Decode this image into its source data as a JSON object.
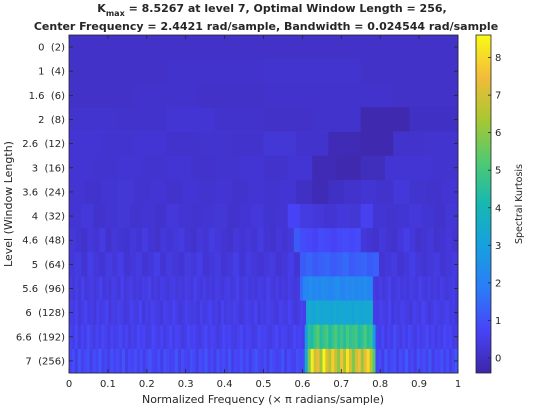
{
  "chart_data": {
    "type": "heatmap",
    "title_line1_prefix": "K",
    "title_line1_sub": "max",
    "title_line1_rest": " = 8.5267 at level 7, Optimal Window Length = 256,",
    "title_line2": "Center Frequency = 2.4421 rad/sample, Bandwidth = 0.024544 rad/sample",
    "xlabel": "Normalized Frequency (× π radians/sample)",
    "ylabel": "Level (Window Length)",
    "colorbar_label": "Spectral Kurtosis",
    "xlim": [
      0,
      1
    ],
    "x_ticks": [
      "0",
      "0.1",
      "0.2",
      "0.3",
      "0.4",
      "0.5",
      "0.6",
      "0.7",
      "0.8",
      "0.9",
      "1"
    ],
    "y_labels": [
      "0  (2)",
      "1  (4)",
      "1.6  (6)",
      "2  (8)",
      "2.6  (12)",
      "3  (16)",
      "3.6  (24)",
      "4  (32)",
      "4.6  (48)",
      "5  (64)",
      "5.6  (96)",
      "6  (128)",
      "6.6  (192)",
      "7  (256)"
    ],
    "colorbar_ticks": [
      "0",
      "1",
      "2",
      "3",
      "4",
      "5",
      "6",
      "7",
      "8"
    ],
    "clim": [
      -0.4,
      8.6
    ],
    "colormap": [
      "#3e26a8",
      "#4743f8",
      "#2b7cf8",
      "#16a0e0",
      "#16b8b1",
      "#4fca71",
      "#a9c731",
      "#f3bb3a",
      "#f9fb15"
    ],
    "levels": [
      {
        "values": [
          0.05,
          0.05
        ]
      },
      {
        "values": [
          0.05,
          0.1,
          0.15,
          0.05
        ]
      },
      {
        "values": [
          0.05,
          0.1,
          0.05,
          0.1,
          0.1,
          0.05
        ]
      },
      {
        "values": [
          0.15,
          0.1,
          0.2,
          0.1,
          0.05,
          0.1,
          -0.3,
          0.0
        ]
      },
      {
        "values": [
          0.2,
          0.15,
          0.2,
          0.1,
          0.15,
          0.1,
          0.25,
          0.1,
          -0.2,
          -0.3,
          0.1,
          0.15
        ]
      },
      {
        "values": [
          0.2,
          0.15,
          0.2,
          0.15,
          0.2,
          0.1,
          0.15,
          0.2,
          0.1,
          0.2,
          -0.2,
          -0.3,
          -0.1,
          0.2,
          0.2,
          0.15
        ]
      },
      {
        "values": [
          0.2,
          0.1,
          0.2,
          0.25,
          0.15,
          0.2,
          0.1,
          0.2,
          0.15,
          0.2,
          0.1,
          0.2,
          0.15,
          0.2,
          0.0,
          -0.2,
          0.0,
          0.1,
          0.2,
          0.1,
          0.3,
          0.15,
          0.1,
          0.2
        ]
      },
      {
        "values": [
          0.2,
          0.3,
          0.1,
          0.2,
          0.25,
          0.15,
          0.2,
          0.1,
          0.3,
          0.2,
          0.15,
          0.2,
          0.25,
          0.1,
          0.2,
          0.3,
          0.15,
          0.2,
          0.7,
          0.4,
          0.3,
          0.2,
          0.3,
          0.25,
          0.6,
          0.2,
          0.15,
          0.2,
          0.3,
          0.2,
          0.1,
          0.25
        ]
      },
      {
        "values": [
          0.3,
          0.2,
          0.1,
          0.3,
          0.2,
          0.4,
          0.1,
          0.3,
          0.2,
          0.15,
          0.3,
          0.2,
          0.4,
          0.2,
          0.1,
          0.3,
          0.2,
          0.3,
          0.4,
          0.2,
          0.1,
          0.3,
          0.2,
          0.4,
          0.3,
          0.2,
          0.1,
          0.3,
          0.2,
          0.3,
          0.2,
          0.4,
          0.2,
          0.1,
          0.3,
          0.2,
          0.3,
          1.2,
          0.9,
          0.8,
          0.7,
          0.9,
          0.8,
          0.7,
          0.8,
          0.9,
          0.8,
          0.9,
          0.3,
          0.2,
          0.1,
          0.3,
          0.2,
          0.1,
          0.3,
          0.5,
          0.3,
          0.1,
          0.2,
          0.3,
          0.1,
          0.2,
          0.3,
          0.2
        ]
      },
      {
        "values": [
          0.3,
          0.4,
          0.2,
          0.5,
          0.3,
          0.2,
          0.4,
          0.3,
          0.5,
          0.2,
          0.3,
          0.4,
          0.2,
          0.3,
          0.5,
          0.2,
          0.4,
          0.3,
          0.2,
          0.4,
          0.3,
          0.5,
          0.2,
          0.3,
          0.4,
          0.2,
          0.3,
          0.5,
          0.2,
          0.4,
          0.3,
          0.2,
          0.3,
          0.4,
          0.2,
          0.3,
          0.5,
          0.2,
          1.2,
          1.4,
          1.2,
          1.3,
          1.4,
          1.2,
          1.3,
          1.5,
          1.2,
          1.3,
          1.4,
          1.2,
          1.3,
          0.2,
          0.3,
          0.4,
          0.2,
          0.3,
          0.5,
          0.3,
          0.2,
          0.3,
          0.4,
          0.2,
          0.3,
          0.4
        ]
      },
      {
        "values": [
          0.4,
          0.3,
          0.5,
          0.3,
          0.6,
          0.3,
          0.4,
          0.5,
          0.3,
          0.4,
          0.6,
          0.3,
          0.4,
          0.3,
          0.5,
          0.4,
          0.3,
          0.6,
          0.3,
          0.4,
          0.5,
          0.3,
          0.4,
          0.3,
          0.5,
          0.4,
          0.6,
          0.3,
          0.4,
          0.3,
          0.5,
          0.4,
          0.3,
          0.4,
          0.5,
          0.3,
          0.4,
          0.3,
          0.5,
          0.4,
          0.3,
          0.6,
          0.4,
          0.3,
          0.5,
          0.3,
          0.4,
          0.3,
          0.5,
          0.4,
          0.3,
          0.4,
          0.5,
          0.3,
          0.4,
          0.6,
          0.3,
          0.4,
          0.5,
          0.3,
          0.4,
          0.3,
          0.5,
          0.4,
          0.3,
          0.6,
          0.4,
          0.3,
          0.5,
          0.3,
          0.4,
          0.3,
          0.5,
          0.4,
          0.3,
          0.4,
          1.5,
          2.2,
          2.1,
          2.4,
          2.2,
          2.3,
          2.1,
          2.4,
          2.3,
          2.2,
          2.1,
          2.3,
          2.5,
          2.2,
          2.0,
          2.3,
          2.2,
          2.4,
          2.1,
          2.3,
          2.2,
          2.4,
          2.2,
          2.1,
          0.4,
          0.3,
          0.5,
          0.3,
          0.4,
          0.6,
          0.3,
          0.4,
          0.5,
          0.3,
          0.4,
          0.3,
          0.5,
          0.4,
          0.3,
          0.6,
          0.4,
          0.3,
          0.5,
          0.3,
          0.4,
          0.3,
          0.5,
          0.4,
          0.3,
          0.4,
          0.5,
          0.3
        ]
      },
      {
        "values": [
          0.5,
          0.4,
          0.6,
          0.3,
          0.5,
          0.7,
          0.4,
          0.5,
          0.3,
          0.6,
          0.4,
          0.5,
          0.7,
          0.3,
          0.5,
          0.4,
          0.6,
          0.5,
          0.3,
          0.4,
          0.6,
          0.5,
          0.4,
          0.7,
          0.3,
          0.5,
          0.4,
          0.6,
          0.5,
          0.4,
          0.3,
          0.6,
          0.5,
          0.4,
          0.7,
          0.5,
          0.3,
          0.4,
          0.6,
          0.5,
          0.4,
          0.5,
          0.3,
          0.6,
          0.4,
          0.5,
          0.7,
          0.4,
          0.5,
          0.3,
          0.6,
          0.4,
          0.5,
          0.4,
          0.6,
          0.5,
          0.3,
          0.4,
          0.6,
          0.5,
          0.4,
          0.7,
          0.3,
          0.5,
          0.4,
          0.6,
          0.5,
          0.4,
          0.3,
          0.6,
          0.5,
          0.4,
          0.7,
          0.5,
          0.3,
          0.4,
          0.6,
          0.5,
          3.2,
          3.4,
          3.1,
          3.5,
          3.3,
          3.2,
          3.4,
          3.3,
          3.1,
          3.5,
          3.2,
          3.4,
          3.3,
          3.2,
          3.4,
          3.1,
          3.5,
          3.3,
          3.2,
          3.4,
          3.3,
          3.5,
          0.5,
          0.4,
          0.6,
          0.5,
          0.4,
          0.7,
          0.3,
          0.5,
          0.4,
          0.6,
          0.5,
          0.4,
          0.3,
          0.6,
          0.5,
          0.4,
          0.7,
          0.5,
          0.3,
          0.4,
          0.6,
          0.5,
          0.4,
          0.5,
          0.6,
          0.4,
          0.5,
          0.3
        ]
      },
      {
        "values": [
          0.6,
          0.5,
          0.8,
          0.4,
          0.7,
          0.5,
          0.9,
          0.6,
          0.4,
          0.7,
          0.5,
          0.8,
          0.6,
          0.4,
          0.7,
          0.5,
          0.6,
          0.8,
          0.5,
          0.7,
          0.4,
          0.6,
          0.5,
          0.8,
          0.6,
          0.7,
          0.4,
          0.5,
          0.8,
          0.6,
          0.5,
          0.7,
          0.4,
          0.6,
          0.8,
          0.5,
          0.7,
          0.6,
          0.4,
          0.5,
          0.8,
          0.6,
          0.7,
          0.5,
          0.4,
          0.6,
          0.8,
          0.5,
          0.7,
          0.6,
          0.4,
          0.5,
          0.8,
          0.6,
          0.7,
          0.5,
          0.4,
          0.6,
          0.8,
          0.5,
          0.7,
          0.6,
          0.4,
          0.5,
          0.8,
          0.6,
          0.7,
          0.5,
          0.4,
          0.6,
          0.8,
          0.5,
          0.7,
          0.6,
          0.4,
          0.5,
          0.8,
          0.6,
          0.7,
          0.5,
          2.8,
          4.5,
          4.2,
          4.9,
          5.3,
          4.4,
          4.8,
          5.1,
          4.3,
          4.7,
          5.2,
          4.5,
          4.9,
          4.4,
          5.1,
          4.6,
          4.8,
          5.0,
          4.3,
          4.6,
          5.2,
          4.4,
          4.7,
          2.9,
          0.6,
          0.5,
          0.8,
          0.4,
          0.7,
          0.5,
          0.9,
          0.6,
          0.4,
          0.7,
          0.5,
          0.8,
          0.6,
          0.4,
          0.7,
          0.5,
          0.6,
          0.8,
          0.5,
          0.7,
          0.4,
          0.6,
          0.5,
          0.8,
          0.6,
          0.7,
          0.4,
          0.5
        ]
      },
      {
        "values": [
          0.7,
          0.9,
          0.5,
          1.1,
          0.6,
          0.8,
          1.0,
          0.5,
          0.9,
          0.7,
          1.2,
          0.6,
          0.8,
          0.5,
          1.0,
          0.7,
          0.9,
          0.6,
          1.1,
          0.5,
          0.8,
          0.7,
          1.0,
          0.6,
          0.9,
          0.5,
          0.8,
          1.1,
          0.7,
          0.6,
          0.9,
          0.5,
          1.0,
          0.8,
          0.6,
          0.7,
          1.1,
          0.5,
          0.9,
          0.7,
          0.6,
          1.0,
          0.8,
          0.5,
          0.9,
          0.7,
          1.1,
          0.6,
          0.8,
          0.5,
          1.0,
          0.7,
          0.9,
          0.6,
          1.1,
          0.5,
          0.8,
          0.7,
          1.0,
          0.6,
          0.9,
          0.5,
          0.8,
          1.1,
          0.7,
          0.6,
          0.9,
          0.5,
          1.0,
          0.8,
          0.6,
          0.7,
          1.1,
          0.5,
          0.9,
          0.7,
          0.6,
          1.0,
          0.8,
          0.9,
          3.5,
          5.8,
          8.3,
          6.9,
          7.4,
          6.2,
          8.5,
          7.1,
          6.5,
          7.8,
          6.8,
          5.9,
          7.6,
          6.4,
          8.2,
          7.0,
          5.8,
          6.9,
          7.5,
          6.1,
          7.3,
          8.0,
          6.6,
          5.2,
          0.7,
          0.9,
          0.5,
          1.1,
          0.6,
          0.8,
          1.0,
          0.5,
          0.9,
          0.7,
          1.2,
          0.6,
          0.8,
          0.5,
          1.0,
          0.7,
          0.9,
          0.6,
          1.1,
          0.5,
          0.8,
          0.7,
          1.0,
          0.6,
          0.9,
          0.5,
          0.8,
          1.1
        ]
      }
    ]
  }
}
